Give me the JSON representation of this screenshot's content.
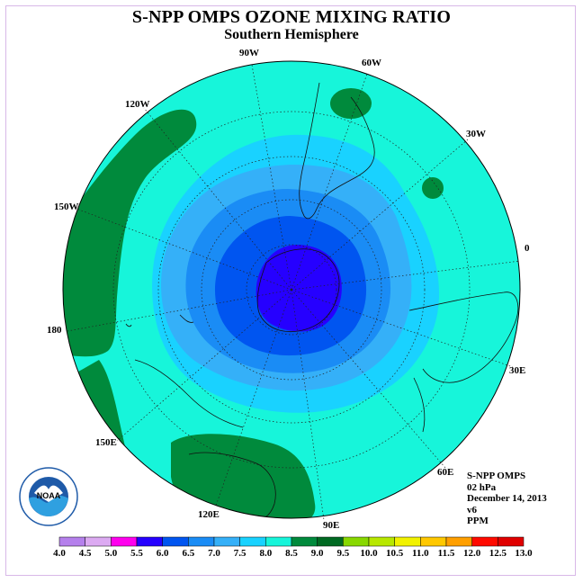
{
  "title": "S-NPP OMPS OZONE MIXING RATIO",
  "subtitle": "Southern Hemisphere",
  "longitude_labels": [
    "90W",
    "60W",
    "30W",
    "0",
    "30E",
    "60E",
    "90E",
    "120E",
    "150E",
    "180",
    "150W",
    "120W"
  ],
  "info": {
    "instrument": "S-NPP OMPS",
    "level": "02 hPa",
    "date": "December 14, 2013",
    "version": "v6",
    "units": "PPM"
  },
  "logo": {
    "text": "NOAA",
    "name": "noaa-logo"
  },
  "colorbar": {
    "ticks": [
      "4.0",
      "4.5",
      "5.0",
      "5.5",
      "6.0",
      "6.5",
      "7.0",
      "7.5",
      "8.0",
      "8.5",
      "9.0",
      "9.5",
      "10.0",
      "10.5",
      "11.0",
      "11.5",
      "12.0",
      "12.5",
      "13.0"
    ],
    "colors": [
      "#b580ec",
      "#dcaaf2",
      "#ff00ee",
      "#2600ff",
      "#0055f0",
      "#1a8cf5",
      "#35b0f8",
      "#19d2ff",
      "#17f5da",
      "#008a3c",
      "#006a22",
      "#88d800",
      "#b8e800",
      "#f2f200",
      "#ffc800",
      "#ff9f00",
      "#ff0a00",
      "#e00000",
      "#8a5a38"
    ]
  },
  "map_colors": {
    "ocean_outer": "#17f5da",
    "band_7_5": "#19d2ff",
    "band_7_0": "#35b0f8",
    "band_6_5": "#1a8cf5",
    "band_6_0": "#0055f0",
    "band_5_5": "#2600ff",
    "band_8_5": "#008a3c"
  }
}
